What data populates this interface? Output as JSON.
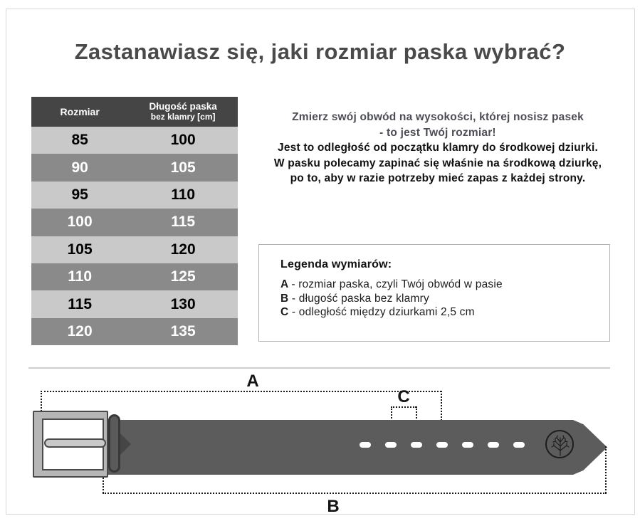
{
  "page": {
    "title": "Zastanawiasz się, jaki rozmiar paska wybrać?"
  },
  "size_table": {
    "headers": {
      "col1": "Rozmiar",
      "col2_line1": "Długość paska",
      "col2_line2": "bez klamry [cm]"
    },
    "rows": [
      {
        "size": "85",
        "length": "100"
      },
      {
        "size": "90",
        "length": "105"
      },
      {
        "size": "95",
        "length": "110"
      },
      {
        "size": "100",
        "length": "115"
      },
      {
        "size": "105",
        "length": "120"
      },
      {
        "size": "110",
        "length": "125"
      },
      {
        "size": "115",
        "length": "130"
      },
      {
        "size": "120",
        "length": "135"
      }
    ]
  },
  "description": {
    "highlight_lines": [
      "Zmierz swój obwód na wysokości, której nosisz pasek",
      "- to jest Twój rozmiar!"
    ],
    "body_lines": [
      "Jest to odległość od początku klamry do środkowej dziurki.",
      "W pasku polecamy zapinać się właśnie na środkową dziurkę,",
      "po to, aby w razie potrzeby mieć zapas z każdej strony."
    ]
  },
  "legend": {
    "title": "Legenda wymiarów:",
    "items": [
      {
        "key": "A",
        "text": "- rozmiar paska, czyli Twój obwód w pasie"
      },
      {
        "key": "B",
        "text": "- długość paska bez klamry"
      },
      {
        "key": "C",
        "text": "- odległość między dziurkami 2,5 cm"
      }
    ]
  },
  "diagram": {
    "label_a": "A",
    "label_b": "B",
    "label_c": "C",
    "hole_count": 7,
    "logo_icon": "tree-logo"
  },
  "colors": {
    "table_header_bg": "#454545",
    "table_row_light": "#c9c9c9",
    "table_row_dark": "#8a8a8a",
    "highlight_text": "#4d4d55",
    "body_text": "#111111",
    "belt": "#5c5c5c",
    "buckle": "#b6b6b6",
    "divider": "#cfcfcf"
  }
}
